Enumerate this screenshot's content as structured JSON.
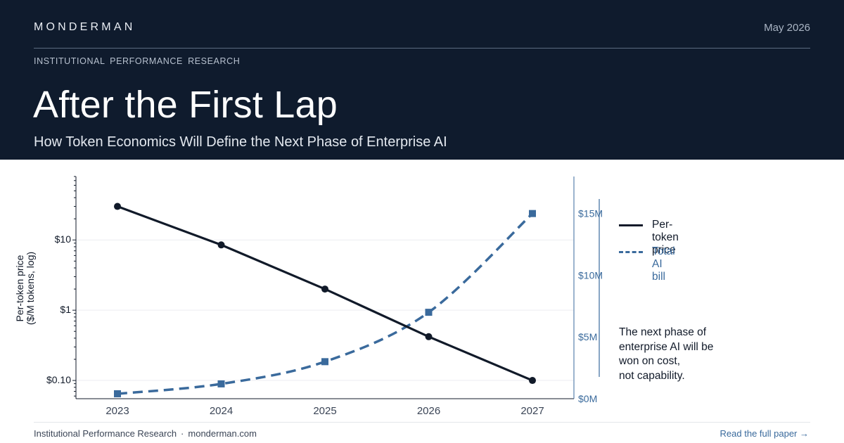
{
  "header": {
    "brand": "MONDERMAN",
    "date": "May 2026",
    "series_label": "INSTITUTIONAL PERFORMANCE RESEARCH",
    "title": "After the First Lap",
    "subtitle": "How Token Economics Will Define the Next Phase of Enterprise AI"
  },
  "colors": {
    "header_bg": "#0f1b2d",
    "price_line": "#111a29",
    "bill_line": "#3a6a9c"
  },
  "chart_data": {
    "type": "line",
    "categories": [
      "2023",
      "2024",
      "2025",
      "2026",
      "2027"
    ],
    "y_left": {
      "label": "Per-token price ($/M tokens, log)",
      "scale": "log",
      "ticks": [
        0.1,
        1,
        10
      ],
      "tick_labels": [
        "$0.10",
        "$1",
        "$10"
      ],
      "range": [
        0.055,
        80
      ]
    },
    "y_right": {
      "scale": "linear",
      "ticks": [
        0,
        5,
        10,
        15
      ],
      "tick_labels": [
        "$0M",
        "$5M",
        "$10M",
        "$15M"
      ],
      "range": [
        0,
        18
      ]
    },
    "series": [
      {
        "name": "Per-token price",
        "axis": "left",
        "style": "solid",
        "color": "#111a29",
        "marker": "circle",
        "values": [
          30,
          8.5,
          2.0,
          0.42,
          0.1
        ]
      },
      {
        "name": "Total AI bill",
        "axis": "right",
        "style": "dashed",
        "color": "#3a6a9c",
        "marker": "square",
        "values": [
          0.4,
          1.2,
          3.0,
          7.0,
          15.0
        ]
      }
    ],
    "grid": true,
    "legend_position": "right"
  },
  "note": {
    "lines": [
      "The next phase of",
      "enterprise AI will be",
      "won on cost,",
      "not capability."
    ]
  },
  "footer": {
    "left_primary": "Institutional Performance Research",
    "separator": "·",
    "left_secondary": "monderman.com",
    "right_link": "Read the full paper   →"
  }
}
